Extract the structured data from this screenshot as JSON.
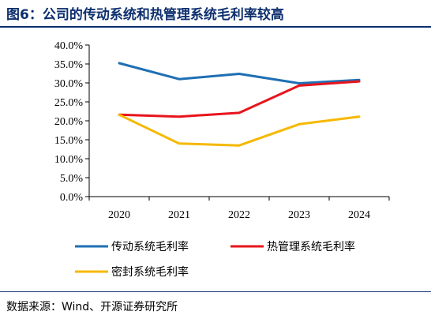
{
  "header": {
    "title": "图6：公司的传动系统和热管理系统毛利率较高"
  },
  "footer": {
    "source": "数据来源：Wind、开源证券研究所"
  },
  "chart_data": {
    "type": "line",
    "title": "",
    "xlabel": "",
    "ylabel": "",
    "x": [
      "2020",
      "2021",
      "2022",
      "2023",
      "2024"
    ],
    "ylim": [
      0,
      40
    ],
    "yticks": [
      "0.0%",
      "5.0%",
      "10.0%",
      "15.0%",
      "20.0%",
      "25.0%",
      "30.0%",
      "35.0%",
      "40.0%"
    ],
    "grid": false,
    "legend_position": "bottom",
    "series": [
      {
        "name": "传动系统毛利率",
        "color": "#1f6fb4",
        "values": [
          35.2,
          31.0,
          32.4,
          29.9,
          30.8
        ]
      },
      {
        "name": "热管理系统毛利率",
        "color": "#e8141c",
        "values": [
          21.6,
          21.1,
          22.1,
          29.3,
          30.4
        ]
      },
      {
        "name": "密封系统毛利率",
        "color": "#f5b800",
        "values": [
          21.6,
          14.0,
          13.5,
          19.1,
          21.1
        ]
      }
    ]
  }
}
